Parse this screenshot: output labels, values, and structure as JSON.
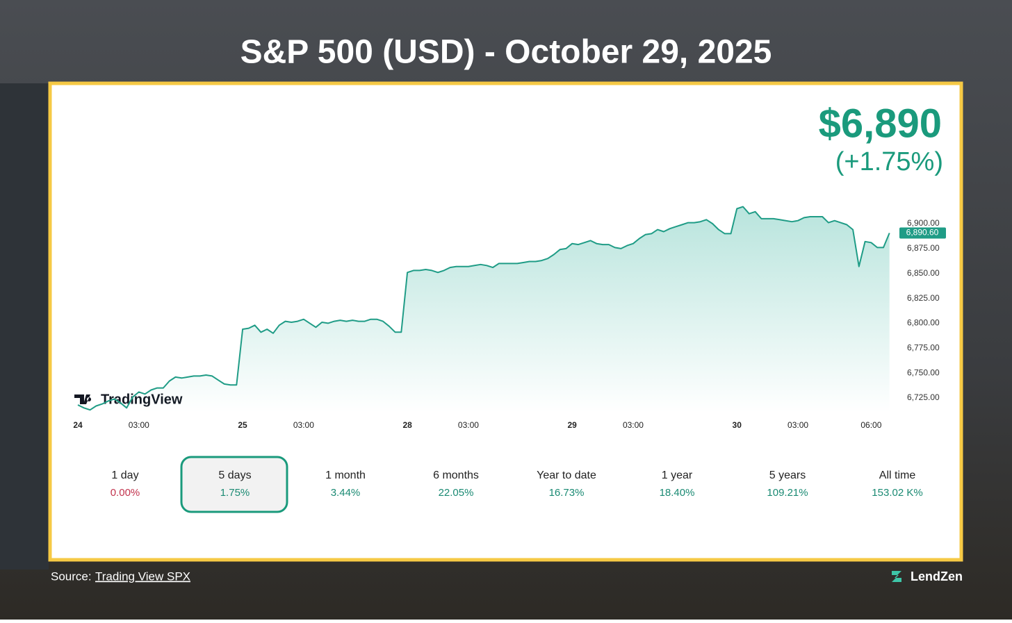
{
  "header": {
    "title": "S&P 500 (USD) - October 29, 2025"
  },
  "price": {
    "value": "$6,890",
    "change": "(+1.75%)",
    "color": "#1a9a7c"
  },
  "brand": "TradingView",
  "chart_data": {
    "type": "line",
    "color": "#1f9c86",
    "categories": [
      "24",
      null,
      null,
      null,
      null,
      null,
      null,
      null,
      null,
      null,
      "03:00",
      null,
      null,
      null,
      null,
      null,
      null,
      null,
      null,
      null,
      null,
      null,
      null,
      null,
      null,
      null,
      null,
      "25",
      null,
      null,
      null,
      null,
      null,
      null,
      null,
      null,
      null,
      "03:00",
      null,
      null,
      null,
      null,
      null,
      null,
      null,
      null,
      null,
      null,
      null,
      null,
      null,
      null,
      null,
      null,
      "28",
      null,
      null,
      null,
      null,
      null,
      null,
      null,
      null,
      null,
      "03:00",
      null,
      null,
      null,
      null,
      null,
      null,
      null,
      null,
      null,
      null,
      null,
      null,
      null,
      null,
      null,
      null,
      "29",
      null,
      null,
      null,
      null,
      null,
      null,
      null,
      null,
      null,
      "03:00",
      null,
      null,
      null,
      null,
      null,
      null,
      null,
      null,
      null,
      null,
      null,
      null,
      null,
      null,
      null,
      null,
      "30",
      null,
      null,
      null,
      null,
      null,
      null,
      null,
      null,
      null,
      "03:00",
      null,
      null,
      null,
      null,
      null,
      null,
      null,
      null,
      null,
      null,
      null,
      "06:00",
      null,
      null,
      null
    ],
    "values": [
      6718,
      6715,
      6713,
      6717,
      6719,
      6722,
      6724,
      6720,
      6715,
      6726,
      6731,
      6729,
      6733,
      6735,
      6735,
      6742,
      6746,
      6745,
      6746,
      6747,
      6747,
      6748,
      6747,
      6743,
      6739,
      6738,
      6738,
      6794,
      6795,
      6798,
      6791,
      6794,
      6790,
      6798,
      6802,
      6801,
      6802,
      6804,
      6800,
      6796,
      6801,
      6800,
      6802,
      6803,
      6802,
      6803,
      6802,
      6802,
      6804,
      6804,
      6802,
      6797,
      6791,
      6791,
      6851,
      6853,
      6853,
      6854,
      6853,
      6851,
      6853,
      6856,
      6857,
      6857,
      6857,
      6858,
      6859,
      6858,
      6856,
      6860,
      6860,
      6860,
      6860,
      6861,
      6862,
      6862,
      6863,
      6865,
      6869,
      6874,
      6875,
      6880,
      6879,
      6881,
      6883,
      6880,
      6879,
      6879,
      6876,
      6875,
      6878,
      6880,
      6885,
      6889,
      6890,
      6894,
      6892,
      6895,
      6897,
      6899,
      6901,
      6901,
      6902,
      6904,
      6900,
      6894,
      6890,
      6890,
      6915,
      6917,
      6910,
      6912,
      6905,
      6905,
      6905,
      6904,
      6903,
      6902,
      6903,
      6906,
      6907,
      6907,
      6907,
      6901,
      6903,
      6901,
      6899,
      6894,
      6857,
      6882,
      6881,
      6876,
      6876,
      6890.6
    ],
    "last_label": {
      "value": 6890.6,
      "label": "6,890.60"
    },
    "ylim": [
      6710,
      6930
    ],
    "yticks": [
      {
        "value": 6725,
        "label": "6,725.00"
      },
      {
        "value": 6750,
        "label": "6,750.00"
      },
      {
        "value": 6775,
        "label": "6,775.00"
      },
      {
        "value": 6800,
        "label": "6,800.00"
      },
      {
        "value": 6825,
        "label": "6,825.00"
      },
      {
        "value": 6850,
        "label": "6,850.00"
      },
      {
        "value": 6875,
        "label": "6,875.00"
      },
      {
        "value": 6900,
        "label": "6,900.00"
      }
    ],
    "grid": false
  },
  "periods": [
    {
      "label": "1 day",
      "change": "0.00%",
      "color": "#c2334d"
    },
    {
      "label": "5 days",
      "change": "1.75%",
      "color": "#1a8a73"
    },
    {
      "label": "1 month",
      "change": "3.44%",
      "color": "#1a8a73"
    },
    {
      "label": "6 months",
      "change": "22.05%",
      "color": "#1a8a73"
    },
    {
      "label": "Year to date",
      "change": "16.73%",
      "color": "#1a8a73"
    },
    {
      "label": "1 year",
      "change": "18.40%",
      "color": "#1a8a73"
    },
    {
      "label": "5 years",
      "change": "109.21%",
      "color": "#1a8a73"
    },
    {
      "label": "All time",
      "change": "153.02 K%",
      "color": "#1a8a73"
    }
  ],
  "selected_period": 1,
  "footer": {
    "source": "Source:",
    "link": "Trading View SPX",
    "logo": "LendZen"
  }
}
